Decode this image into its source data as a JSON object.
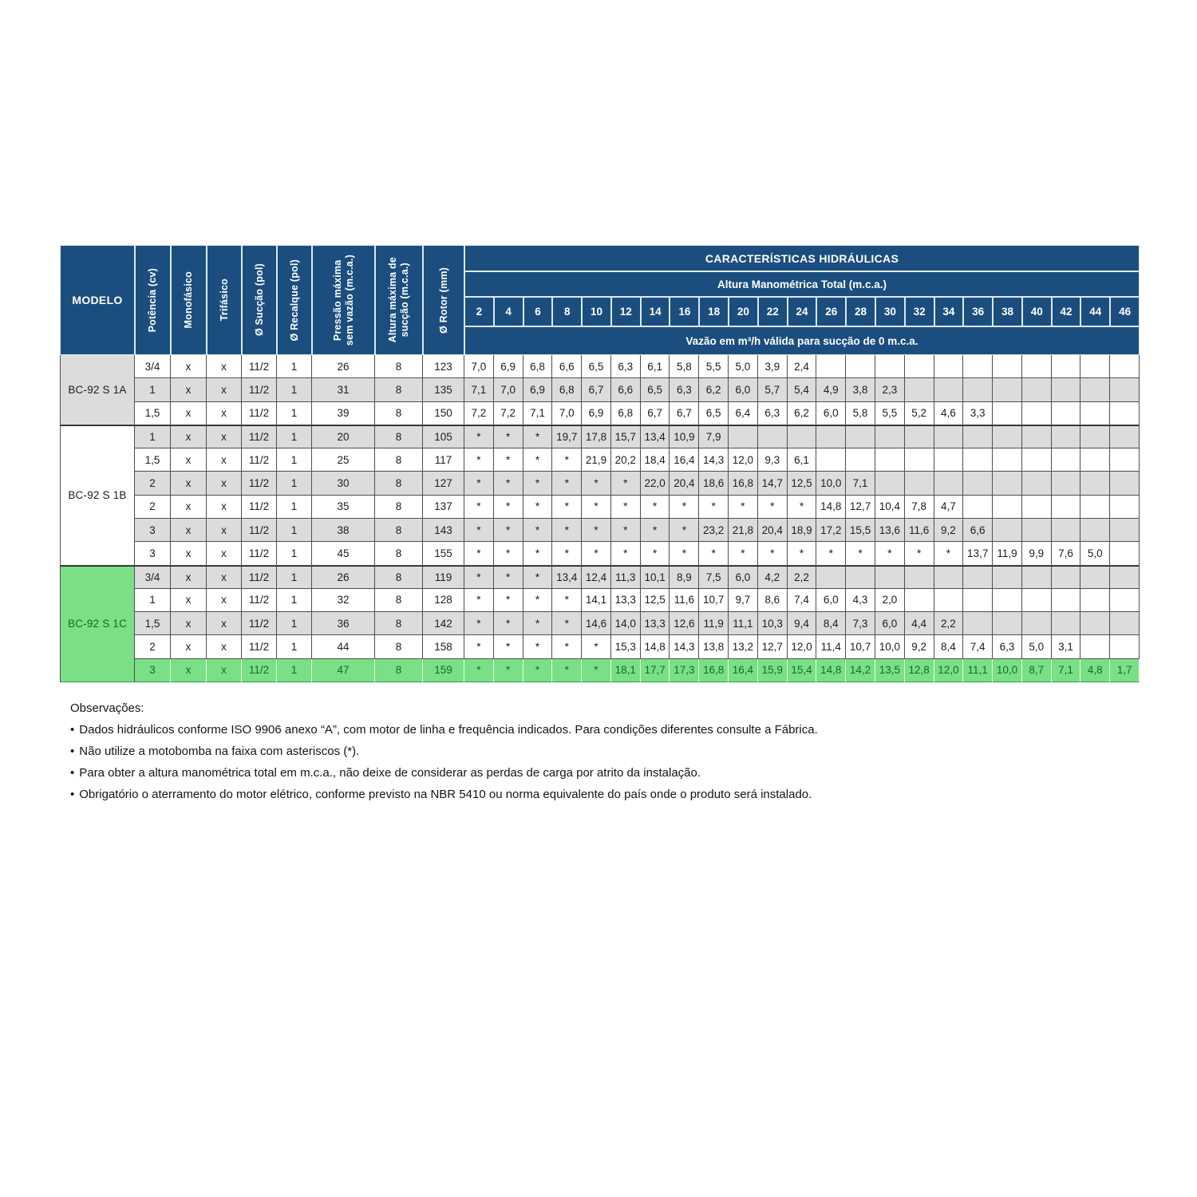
{
  "colors": {
    "header_blue": "#1b4e7e",
    "stripe_gray": "#dcdcdd",
    "green_bg": "#7bdf85",
    "green_text": "#0b6e2d",
    "border_dark": "#4e4e4e"
  },
  "table": {
    "left_headers": [
      "MODELO",
      "Potência (cv)",
      "Monofásico",
      "Trifásico",
      "Ø Sucção (pol)",
      "Ø Recalque (pol)",
      "Pressão máxima\nsem vazão (m.c.a.)",
      "Altura máxima de\nsucção (m.c.a.)",
      "Ø Rotor (mm)"
    ],
    "header": {
      "caracteristicas": "CARACTERÍSTICAS HIDRÁULICAS",
      "altura": "Altura Manométrica Total (m.c.a.)",
      "columns": [
        "2",
        "4",
        "6",
        "8",
        "10",
        "12",
        "14",
        "16",
        "18",
        "20",
        "22",
        "24",
        "26",
        "28",
        "30",
        "32",
        "34",
        "36",
        "38",
        "40",
        "42",
        "44",
        "46"
      ],
      "vazao": "Vazão em m³/h válida para sucção de 0 m.c.a."
    },
    "groups": [
      {
        "model": "BC-92 S 1A",
        "model_tone": "gray",
        "rows": [
          {
            "tone": "white",
            "specs": [
              "3/4",
              "x",
              "x",
              "11/2",
              "1",
              "26",
              "8",
              "123"
            ],
            "flows": [
              "7,0",
              "6,9",
              "6,8",
              "6,6",
              "6,5",
              "6,3",
              "6,1",
              "5,8",
              "5,5",
              "5,0",
              "3,9",
              "2,4",
              "",
              "",
              "",
              "",
              "",
              "",
              "",
              "",
              "",
              "",
              ""
            ]
          },
          {
            "tone": "gray",
            "specs": [
              "1",
              "x",
              "x",
              "11/2",
              "1",
              "31",
              "8",
              "135"
            ],
            "flows": [
              "7,1",
              "7,0",
              "6,9",
              "6,8",
              "6,7",
              "6,6",
              "6,5",
              "6,3",
              "6,2",
              "6,0",
              "5,7",
              "5,4",
              "4,9",
              "3,8",
              "2,3",
              "",
              "",
              "",
              "",
              "",
              "",
              "",
              ""
            ]
          },
          {
            "tone": "white",
            "specs": [
              "1,5",
              "x",
              "x",
              "11/2",
              "1",
              "39",
              "8",
              "150"
            ],
            "flows": [
              "7,2",
              "7,2",
              "7,1",
              "7,0",
              "6,9",
              "6,8",
              "6,7",
              "6,7",
              "6,5",
              "6,4",
              "6,3",
              "6,2",
              "6,0",
              "5,8",
              "5,5",
              "5,2",
              "4,6",
              "3,3",
              "",
              "",
              "",
              "",
              ""
            ]
          }
        ]
      },
      {
        "model": "BC-92 S 1B",
        "model_tone": "white",
        "rows": [
          {
            "tone": "gray",
            "specs": [
              "1",
              "x",
              "x",
              "11/2",
              "1",
              "20",
              "8",
              "105"
            ],
            "flows": [
              "*",
              "*",
              "*",
              "19,7",
              "17,8",
              "15,7",
              "13,4",
              "10,9",
              "7,9",
              "",
              "",
              "",
              "",
              "",
              "",
              "",
              "",
              "",
              "",
              "",
              "",
              "",
              ""
            ]
          },
          {
            "tone": "white",
            "specs": [
              "1,5",
              "x",
              "x",
              "11/2",
              "1",
              "25",
              "8",
              "117"
            ],
            "flows": [
              "*",
              "*",
              "*",
              "*",
              "21,9",
              "20,2",
              "18,4",
              "16,4",
              "14,3",
              "12,0",
              "9,3",
              "6,1",
              "",
              "",
              "",
              "",
              "",
              "",
              "",
              "",
              "",
              "",
              ""
            ]
          },
          {
            "tone": "gray",
            "specs": [
              "2",
              "x",
              "x",
              "11/2",
              "1",
              "30",
              "8",
              "127"
            ],
            "flows": [
              "*",
              "*",
              "*",
              "*",
              "*",
              "*",
              "22,0",
              "20,4",
              "18,6",
              "16,8",
              "14,7",
              "12,5",
              "10,0",
              "7,1",
              "",
              "",
              "",
              "",
              "",
              "",
              "",
              "",
              ""
            ]
          },
          {
            "tone": "white",
            "specs": [
              "2",
              "x",
              "x",
              "11/2",
              "1",
              "35",
              "8",
              "137"
            ],
            "flows": [
              "*",
              "*",
              "*",
              "*",
              "*",
              "*",
              "*",
              "*",
              "*",
              "*",
              "*",
              "*",
              "14,8",
              "12,7",
              "10,4",
              "7,8",
              "4,7",
              "",
              "",
              "",
              "",
              "",
              ""
            ]
          },
          {
            "tone": "gray",
            "specs": [
              "3",
              "x",
              "x",
              "11/2",
              "1",
              "38",
              "8",
              "143"
            ],
            "flows": [
              "*",
              "*",
              "*",
              "*",
              "*",
              "*",
              "*",
              "*",
              "23,2",
              "21,8",
              "20,4",
              "18,9",
              "17,2",
              "15,5",
              "13,6",
              "11,6",
              "9,2",
              "6,6",
              "",
              "",
              "",
              "",
              ""
            ]
          },
          {
            "tone": "white",
            "specs": [
              "3",
              "x",
              "x",
              "11/2",
              "1",
              "45",
              "8",
              "155"
            ],
            "flows": [
              "*",
              "*",
              "*",
              "*",
              "*",
              "*",
              "*",
              "*",
              "*",
              "*",
              "*",
              "*",
              "*",
              "*",
              "*",
              "*",
              "*",
              "13,7",
              "11,9",
              "9,9",
              "7,6",
              "5,0",
              ""
            ]
          }
        ]
      },
      {
        "model": "BC-92 S 1C",
        "model_tone": "green",
        "rows": [
          {
            "tone": "gray",
            "specs": [
              "3/4",
              "x",
              "x",
              "11/2",
              "1",
              "26",
              "8",
              "119"
            ],
            "flows": [
              "*",
              "*",
              "*",
              "13,4",
              "12,4",
              "11,3",
              "10,1",
              "8,9",
              "7,5",
              "6,0",
              "4,2",
              "2,2",
              "",
              "",
              "",
              "",
              "",
              "",
              "",
              "",
              "",
              "",
              ""
            ]
          },
          {
            "tone": "white",
            "specs": [
              "1",
              "x",
              "x",
              "11/2",
              "1",
              "32",
              "8",
              "128"
            ],
            "flows": [
              "*",
              "*",
              "*",
              "*",
              "14,1",
              "13,3",
              "12,5",
              "11,6",
              "10,7",
              "9,7",
              "8,6",
              "7,4",
              "6,0",
              "4,3",
              "2,0",
              "",
              "",
              "",
              "",
              "",
              "",
              "",
              ""
            ]
          },
          {
            "tone": "gray",
            "specs": [
              "1,5",
              "x",
              "x",
              "11/2",
              "1",
              "36",
              "8",
              "142"
            ],
            "flows": [
              "*",
              "*",
              "*",
              "*",
              "14,6",
              "14,0",
              "13,3",
              "12,6",
              "11,9",
              "11,1",
              "10,3",
              "9,4",
              "8,4",
              "7,3",
              "6,0",
              "4,4",
              "2,2",
              "",
              "",
              "",
              "",
              "",
              ""
            ]
          },
          {
            "tone": "white",
            "specs": [
              "2",
              "x",
              "x",
              "11/2",
              "1",
              "44",
              "8",
              "158"
            ],
            "flows": [
              "*",
              "*",
              "*",
              "*",
              "*",
              "15,3",
              "14,8",
              "14,3",
              "13,8",
              "13,2",
              "12,7",
              "12,0",
              "11,4",
              "10,7",
              "10,0",
              "9,2",
              "8,4",
              "7,4",
              "6,3",
              "5,0",
              "3,1",
              "",
              ""
            ]
          },
          {
            "tone": "green",
            "specs": [
              "3",
              "x",
              "x",
              "11/2",
              "1",
              "47",
              "8",
              "159"
            ],
            "flows": [
              "*",
              "*",
              "*",
              "*",
              "*",
              "18,1",
              "17,7",
              "17,3",
              "16,8",
              "16,4",
              "15,9",
              "15,4",
              "14,8",
              "14,2",
              "13,5",
              "12,8",
              "12,0",
              "11,1",
              "10,0",
              "8,7",
              "7,1",
              "4,8",
              "1,7"
            ]
          }
        ]
      }
    ]
  },
  "notes": {
    "title": "Observações:",
    "bullet": "•",
    "items": [
      "Dados hidráulicos conforme ISO 9906 anexo “A”, com motor de linha e frequência indicados. Para condições diferentes consulte a Fábrica.",
      "Não utilize a motobomba na faixa com asteriscos (*).",
      "Para obter a altura manométrica total em m.c.a., não deixe de considerar as perdas de carga por atrito da instalação.",
      "Obrigatório o aterramento do motor elétrico, conforme previsto na NBR 5410 ou norma equivalente do país onde o produto será instalado."
    ]
  }
}
